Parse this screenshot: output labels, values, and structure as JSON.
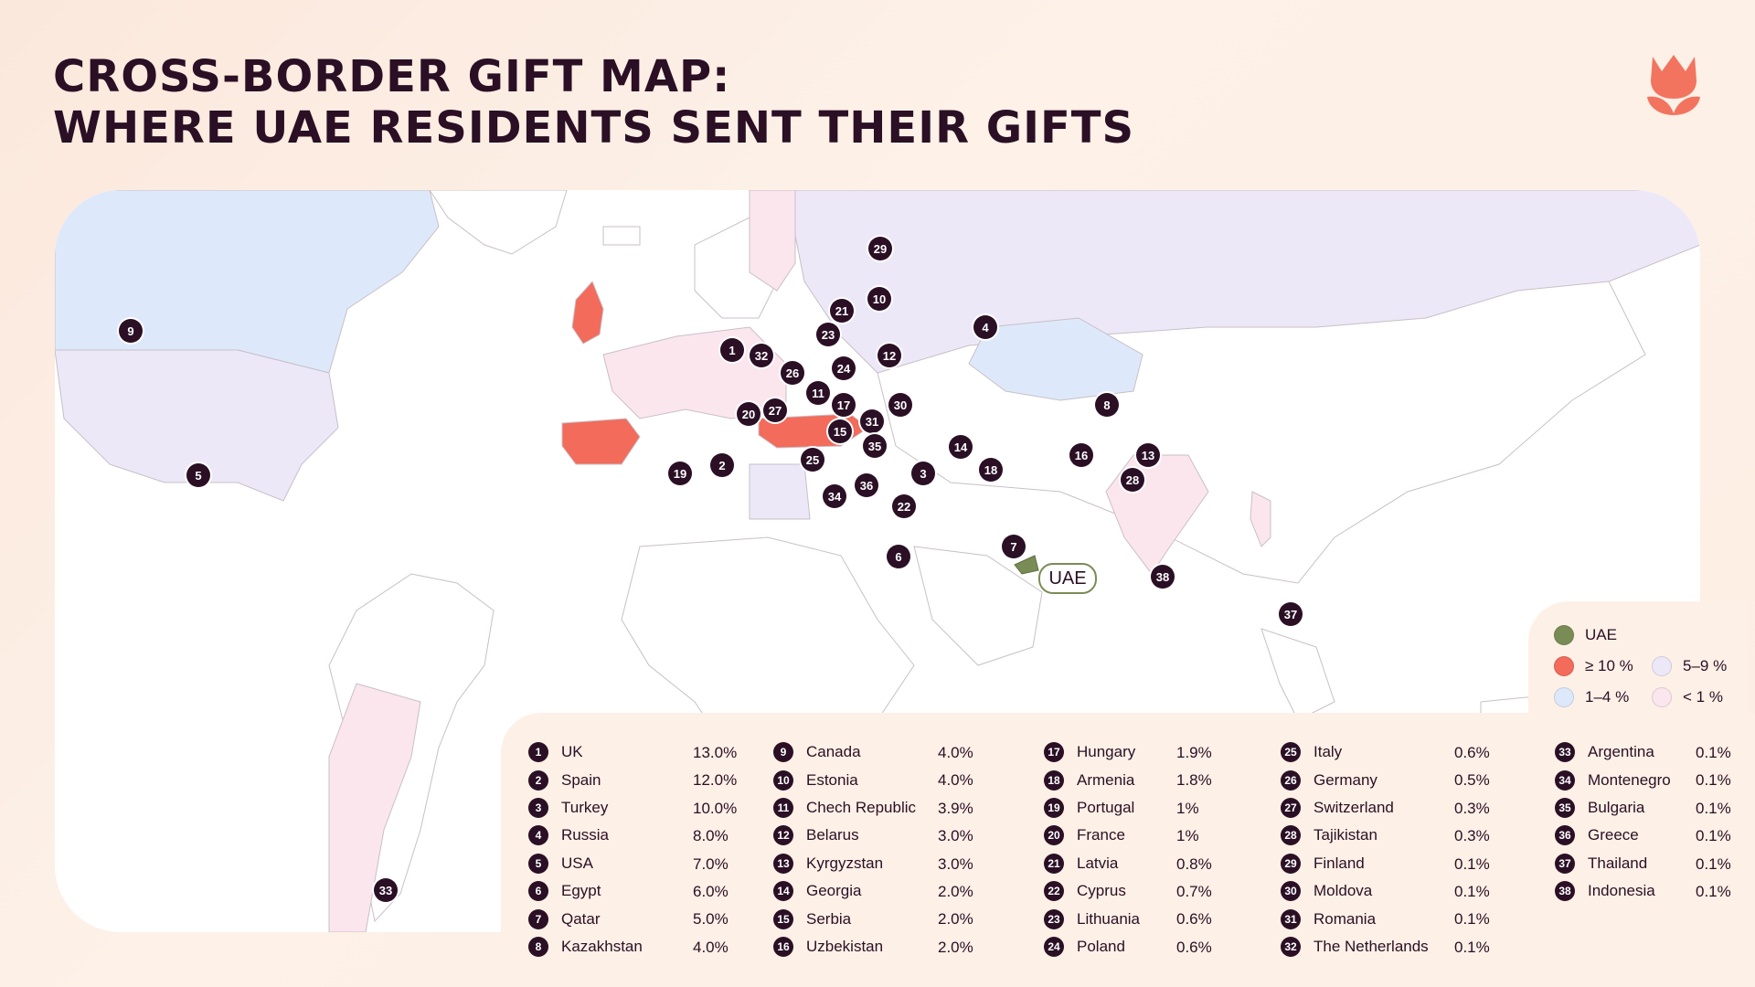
{
  "title": {
    "line1": "CROSS-BORDER GIFT MAP:",
    "line2": "WHERE UAE RESIDENTS SENT THEIR GIFTS"
  },
  "colors": {
    "uae": "#7a8c55",
    "ge10": "#f26b5b",
    "p5_9": "#ece8f8",
    "p1_4": "#dde9fb",
    "lt1": "#fbe6ee",
    "marker": "#2a0f25",
    "logo": "#f2745f"
  },
  "legend": {
    "uae": "UAE",
    "ge10": "≥ 10 %",
    "p5_9": "5–9 %",
    "p1_4": "1–4 %",
    "lt1": "< 1 %"
  },
  "uae_label": "UAE",
  "countries": [
    {
      "n": "1",
      "name": "UK",
      "pct": "13.0%"
    },
    {
      "n": "2",
      "name": "Spain",
      "pct": "12.0%"
    },
    {
      "n": "3",
      "name": "Turkey",
      "pct": "10.0%"
    },
    {
      "n": "4",
      "name": "Russia",
      "pct": "8.0%"
    },
    {
      "n": "5",
      "name": "USA",
      "pct": "7.0%"
    },
    {
      "n": "6",
      "name": "Egypt",
      "pct": "6.0%"
    },
    {
      "n": "7",
      "name": "Qatar",
      "pct": "5.0%"
    },
    {
      "n": "8",
      "name": "Kazakhstan",
      "pct": "4.0%"
    },
    {
      "n": "9",
      "name": "Canada",
      "pct": "4.0%"
    },
    {
      "n": "10",
      "name": "Estonia",
      "pct": "4.0%"
    },
    {
      "n": "11",
      "name": "Chech Republic",
      "pct": "3.9%"
    },
    {
      "n": "12",
      "name": "Belarus",
      "pct": "3.0%"
    },
    {
      "n": "13",
      "name": "Kyrgyzstan",
      "pct": "3.0%"
    },
    {
      "n": "14",
      "name": "Georgia",
      "pct": "2.0%"
    },
    {
      "n": "15",
      "name": "Serbia",
      "pct": "2.0%"
    },
    {
      "n": "16",
      "name": "Uzbekistan",
      "pct": "2.0%"
    },
    {
      "n": "17",
      "name": "Hungary",
      "pct": "1.9%"
    },
    {
      "n": "18",
      "name": "Armenia",
      "pct": "1.8%"
    },
    {
      "n": "19",
      "name": "Portugal",
      "pct": "1%"
    },
    {
      "n": "20",
      "name": "France",
      "pct": "1%"
    },
    {
      "n": "21",
      "name": "Latvia",
      "pct": "0.8%"
    },
    {
      "n": "22",
      "name": "Cyprus",
      "pct": "0.7%"
    },
    {
      "n": "23",
      "name": "Lithuania",
      "pct": "0.6%"
    },
    {
      "n": "24",
      "name": "Poland",
      "pct": "0.6%"
    },
    {
      "n": "25",
      "name": "Italy",
      "pct": "0.6%"
    },
    {
      "n": "26",
      "name": "Germany",
      "pct": "0.5%"
    },
    {
      "n": "27",
      "name": "Switzerland",
      "pct": "0.3%"
    },
    {
      "n": "28",
      "name": "Tajikistan",
      "pct": "0.3%"
    },
    {
      "n": "29",
      "name": "Finland",
      "pct": "0.1%"
    },
    {
      "n": "30",
      "name": "Moldova",
      "pct": "0.1%"
    },
    {
      "n": "31",
      "name": "Romania",
      "pct": "0.1%"
    },
    {
      "n": "32",
      "name": "The Netherlands",
      "pct": "0.1%"
    },
    {
      "n": "33",
      "name": "Argentina",
      "pct": "0.1%"
    },
    {
      "n": "34",
      "name": "Montenegro",
      "pct": "0.1%"
    },
    {
      "n": "35",
      "name": "Bulgaria",
      "pct": "0.1%"
    },
    {
      "n": "36",
      "name": "Greece",
      "pct": "0.1%"
    },
    {
      "n": "37",
      "name": "Thailand",
      "pct": "0.1%"
    },
    {
      "n": "38",
      "name": "Indonesia",
      "pct": "0.1%"
    }
  ]
}
